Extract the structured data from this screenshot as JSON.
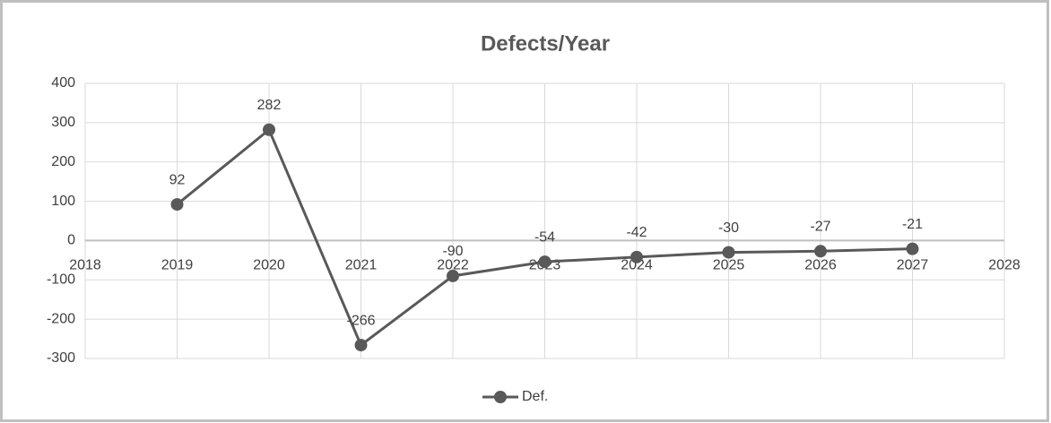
{
  "chart_data": {
    "type": "line",
    "title": "Defects/Year",
    "x": [
      2019,
      2020,
      2021,
      2022,
      2023,
      2024,
      2025,
      2026,
      2027
    ],
    "series": [
      {
        "name": "Def.",
        "color": "#595959",
        "values": [
          92,
          282,
          -266,
          -90,
          -54,
          -42,
          -30,
          -27,
          -21
        ]
      }
    ],
    "xlim": [
      2018,
      2028
    ],
    "xticks": [
      2018,
      2019,
      2020,
      2021,
      2022,
      2023,
      2024,
      2025,
      2026,
      2027,
      2028
    ],
    "ylim": [
      -300,
      400
    ],
    "yticks": [
      -300,
      -200,
      -100,
      0,
      100,
      200,
      300,
      400
    ],
    "grid": true,
    "legend": "bottom"
  }
}
